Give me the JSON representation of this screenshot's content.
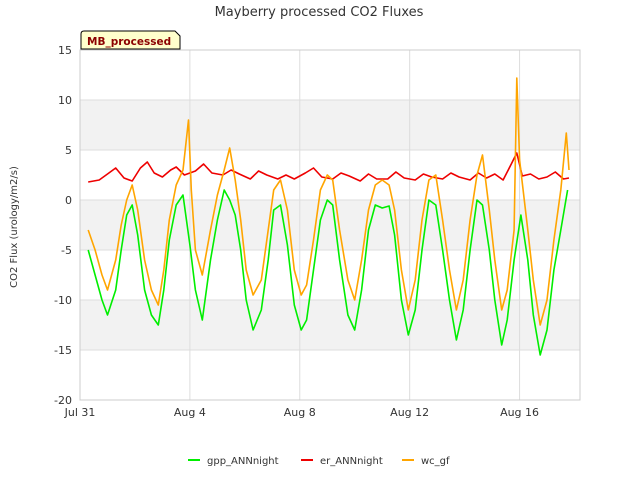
{
  "chart_data": {
    "type": "line",
    "title": "Mayberry processed CO2 Fluxes",
    "badge": "MB_processed",
    "ylabel": "CO2 Flux (urology/m2/s)",
    "xlabel": "",
    "ylim": [
      -20,
      15
    ],
    "xlim": [
      0,
      18.2
    ],
    "x_unit": "days since Jul 31",
    "x_ticks": [
      {
        "x": 0,
        "label": "Jul 31"
      },
      {
        "x": 4,
        "label": "Aug 4"
      },
      {
        "x": 8,
        "label": "Aug 8"
      },
      {
        "x": 12,
        "label": "Aug 12"
      },
      {
        "x": 16,
        "label": "Aug 16"
      }
    ],
    "y_ticks": [
      15,
      10,
      5,
      0,
      -5,
      -10,
      -15,
      -20
    ],
    "shaded_bands": [
      [
        5,
        10
      ],
      [
        -5,
        0
      ],
      [
        -15,
        -10
      ]
    ],
    "grid": true,
    "legend_position": "bottom",
    "series": [
      {
        "name": "gpp_ANNnight",
        "color": "#00ee00",
        "points": [
          [
            0.3,
            -5
          ],
          [
            0.55,
            -7.5
          ],
          [
            0.8,
            -10
          ],
          [
            1.0,
            -11.5
          ],
          [
            1.3,
            -9
          ],
          [
            1.5,
            -5
          ],
          [
            1.7,
            -1.5
          ],
          [
            1.9,
            -0.5
          ],
          [
            2.1,
            -3.5
          ],
          [
            2.35,
            -9
          ],
          [
            2.6,
            -11.5
          ],
          [
            2.85,
            -12.5
          ],
          [
            3.05,
            -9
          ],
          [
            3.25,
            -4
          ],
          [
            3.5,
            -0.5
          ],
          [
            3.75,
            0.5
          ],
          [
            4.0,
            -4.5
          ],
          [
            4.2,
            -9
          ],
          [
            4.45,
            -12
          ],
          [
            4.75,
            -6
          ],
          [
            5.0,
            -2
          ],
          [
            5.25,
            1
          ],
          [
            5.45,
            0
          ],
          [
            5.65,
            -1.5
          ],
          [
            5.85,
            -5
          ],
          [
            6.05,
            -10
          ],
          [
            6.3,
            -13
          ],
          [
            6.6,
            -11
          ],
          [
            6.85,
            -6
          ],
          [
            7.05,
            -1
          ],
          [
            7.3,
            -0.5
          ],
          [
            7.55,
            -4.5
          ],
          [
            7.8,
            -10.5
          ],
          [
            8.05,
            -13
          ],
          [
            8.25,
            -12
          ],
          [
            8.5,
            -7
          ],
          [
            8.75,
            -2
          ],
          [
            9.0,
            0
          ],
          [
            9.2,
            -0.5
          ],
          [
            9.45,
            -6
          ],
          [
            9.75,
            -11.5
          ],
          [
            10.0,
            -13
          ],
          [
            10.25,
            -9
          ],
          [
            10.5,
            -3
          ],
          [
            10.75,
            -0.5
          ],
          [
            11.0,
            -0.8
          ],
          [
            11.25,
            -0.6
          ],
          [
            11.45,
            -3.5
          ],
          [
            11.7,
            -10
          ],
          [
            11.95,
            -13.5
          ],
          [
            12.2,
            -11
          ],
          [
            12.45,
            -5
          ],
          [
            12.7,
            0
          ],
          [
            12.95,
            -0.5
          ],
          [
            13.2,
            -5
          ],
          [
            13.45,
            -10
          ],
          [
            13.7,
            -14
          ],
          [
            13.95,
            -11
          ],
          [
            14.2,
            -5
          ],
          [
            14.45,
            0
          ],
          [
            14.65,
            -0.5
          ],
          [
            14.9,
            -5
          ],
          [
            15.1,
            -10
          ],
          [
            15.35,
            -14.5
          ],
          [
            15.55,
            -12
          ],
          [
            15.8,
            -6
          ],
          [
            16.05,
            -1.5
          ],
          [
            16.3,
            -6
          ],
          [
            16.5,
            -11.5
          ],
          [
            16.75,
            -15.5
          ],
          [
            17.0,
            -13
          ],
          [
            17.25,
            -7
          ],
          [
            17.5,
            -3
          ],
          [
            17.75,
            1
          ]
        ]
      },
      {
        "name": "er_ANNnight",
        "color": "#ee0000",
        "points": [
          [
            0.3,
            1.8
          ],
          [
            0.7,
            2.0
          ],
          [
            1.0,
            2.6
          ],
          [
            1.3,
            3.2
          ],
          [
            1.6,
            2.2
          ],
          [
            1.9,
            1.9
          ],
          [
            2.2,
            3.2
          ],
          [
            2.45,
            3.8
          ],
          [
            2.7,
            2.7
          ],
          [
            3.0,
            2.3
          ],
          [
            3.3,
            3.0
          ],
          [
            3.5,
            3.3
          ],
          [
            3.8,
            2.5
          ],
          [
            4.2,
            2.9
          ],
          [
            4.5,
            3.6
          ],
          [
            4.8,
            2.7
          ],
          [
            5.2,
            2.5
          ],
          [
            5.5,
            3.0
          ],
          [
            5.8,
            2.6
          ],
          [
            6.2,
            2.1
          ],
          [
            6.5,
            2.9
          ],
          [
            6.8,
            2.5
          ],
          [
            7.2,
            2.1
          ],
          [
            7.5,
            2.5
          ],
          [
            7.8,
            2.1
          ],
          [
            8.2,
            2.7
          ],
          [
            8.5,
            3.2
          ],
          [
            8.8,
            2.3
          ],
          [
            9.2,
            2.1
          ],
          [
            9.5,
            2.7
          ],
          [
            9.8,
            2.4
          ],
          [
            10.2,
            1.9
          ],
          [
            10.5,
            2.6
          ],
          [
            10.8,
            2.1
          ],
          [
            11.2,
            2.1
          ],
          [
            11.5,
            2.8
          ],
          [
            11.8,
            2.2
          ],
          [
            12.2,
            2.0
          ],
          [
            12.5,
            2.6
          ],
          [
            12.8,
            2.3
          ],
          [
            13.2,
            2.1
          ],
          [
            13.5,
            2.7
          ],
          [
            13.8,
            2.3
          ],
          [
            14.2,
            2.0
          ],
          [
            14.5,
            2.7
          ],
          [
            14.8,
            2.2
          ],
          [
            15.1,
            2.6
          ],
          [
            15.4,
            2.0
          ],
          [
            15.7,
            3.6
          ],
          [
            15.9,
            4.7
          ],
          [
            16.1,
            2.4
          ],
          [
            16.4,
            2.6
          ],
          [
            16.7,
            2.1
          ],
          [
            17.0,
            2.3
          ],
          [
            17.3,
            2.8
          ],
          [
            17.6,
            2.1
          ],
          [
            17.8,
            2.2
          ]
        ]
      },
      {
        "name": "wc_gf",
        "color": "#ffa500",
        "points": [
          [
            0.3,
            -3
          ],
          [
            0.55,
            -5
          ],
          [
            0.8,
            -7.5
          ],
          [
            1.0,
            -9
          ],
          [
            1.3,
            -6
          ],
          [
            1.5,
            -2.5
          ],
          [
            1.7,
            0
          ],
          [
            1.9,
            1.5
          ],
          [
            2.1,
            -1
          ],
          [
            2.35,
            -6
          ],
          [
            2.6,
            -9
          ],
          [
            2.85,
            -10.5
          ],
          [
            3.05,
            -7
          ],
          [
            3.25,
            -2
          ],
          [
            3.5,
            1.5
          ],
          [
            3.75,
            3
          ],
          [
            3.95,
            8
          ],
          [
            4.05,
            1
          ],
          [
            4.2,
            -5
          ],
          [
            4.45,
            -7.5
          ],
          [
            4.75,
            -3
          ],
          [
            5.0,
            0.5
          ],
          [
            5.25,
            3
          ],
          [
            5.45,
            5.2
          ],
          [
            5.65,
            2
          ],
          [
            5.85,
            -2
          ],
          [
            6.05,
            -7
          ],
          [
            6.3,
            -9.5
          ],
          [
            6.6,
            -8
          ],
          [
            6.85,
            -3
          ],
          [
            7.05,
            1
          ],
          [
            7.3,
            2
          ],
          [
            7.55,
            -1
          ],
          [
            7.8,
            -7
          ],
          [
            8.05,
            -9.5
          ],
          [
            8.25,
            -8.5
          ],
          [
            8.5,
            -4
          ],
          [
            8.75,
            1
          ],
          [
            9.0,
            2.5
          ],
          [
            9.2,
            2
          ],
          [
            9.45,
            -3
          ],
          [
            9.75,
            -8
          ],
          [
            10.0,
            -10
          ],
          [
            10.25,
            -6
          ],
          [
            10.5,
            -1
          ],
          [
            10.75,
            1.5
          ],
          [
            11.0,
            2
          ],
          [
            11.25,
            1.5
          ],
          [
            11.45,
            -1
          ],
          [
            11.7,
            -7
          ],
          [
            11.95,
            -11
          ],
          [
            12.2,
            -8
          ],
          [
            12.45,
            -2
          ],
          [
            12.7,
            2
          ],
          [
            12.95,
            2.5
          ],
          [
            13.2,
            -2
          ],
          [
            13.45,
            -7
          ],
          [
            13.7,
            -11
          ],
          [
            13.95,
            -8
          ],
          [
            14.2,
            -2
          ],
          [
            14.45,
            2.5
          ],
          [
            14.65,
            4.5
          ],
          [
            14.9,
            -1
          ],
          [
            15.1,
            -6
          ],
          [
            15.35,
            -11
          ],
          [
            15.55,
            -9
          ],
          [
            15.8,
            -3
          ],
          [
            15.9,
            12.2
          ],
          [
            16.0,
            4
          ],
          [
            16.3,
            -3
          ],
          [
            16.5,
            -8
          ],
          [
            16.75,
            -12.5
          ],
          [
            17.0,
            -10
          ],
          [
            17.25,
            -4
          ],
          [
            17.5,
            1
          ],
          [
            17.7,
            6.7
          ],
          [
            17.8,
            3
          ]
        ]
      }
    ]
  }
}
